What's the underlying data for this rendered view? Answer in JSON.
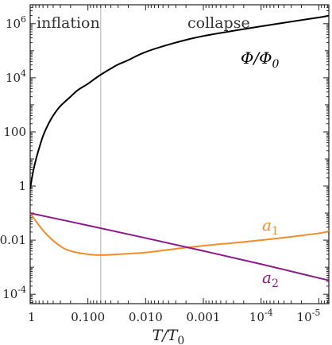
{
  "chart_data": {
    "type": "line",
    "title": "",
    "xlabel": "T/T",
    "xlabel_sub": "0",
    "ylabel": "",
    "x_scale": "log",
    "x_reversed": true,
    "y_scale": "log",
    "xlim": [
      1,
      6.7e-06
    ],
    "ylim": [
      4.5e-05,
      5000000
    ],
    "x_ticks": [
      {
        "label": "1",
        "value": 1
      },
      {
        "label": "0.100",
        "value": 0.1
      },
      {
        "label": "0.010",
        "value": 0.01
      },
      {
        "label": "0.001",
        "value": 0.001
      },
      {
        "label": "10",
        "sup": "-4",
        "value": 0.0001
      },
      {
        "label": "10",
        "sup": "-5",
        "value": 1e-05
      }
    ],
    "y_ticks": [
      {
        "label": "10",
        "sup": "-4",
        "value": 0.0001
      },
      {
        "label": "0.01",
        "value": 0.01
      },
      {
        "label": "1",
        "value": 1
      },
      {
        "label": "100",
        "value": 100
      },
      {
        "label": "10",
        "sup": "4",
        "value": 10000
      },
      {
        "label": "10",
        "sup": "6",
        "value": 1000000
      }
    ],
    "grid": false,
    "divider": {
      "x": 0.06
    },
    "regions": [
      {
        "label": "inflation"
      },
      {
        "label": "collapse"
      }
    ],
    "series": [
      {
        "name": "Φ/Φ",
        "name_sub": "0",
        "color": "#000000",
        "x": [
          1,
          0.9,
          0.8,
          0.7,
          0.6,
          0.5,
          0.4,
          0.3,
          0.2,
          0.15,
          0.1,
          0.08,
          0.06,
          0.04,
          0.03,
          0.02,
          0.01,
          0.003,
          0.001,
          0.0001,
          1e-05,
          6.7e-06
        ],
        "values": [
          0.8,
          3,
          9,
          25,
          70,
          170,
          400,
          900,
          2000,
          3500,
          6000,
          8500,
          13000,
          22000,
          31000,
          45000,
          90000,
          200000,
          350000,
          800000,
          1700000,
          2000000
        ]
      },
      {
        "name": "a",
        "name_sub": "1",
        "color": "#f28c28",
        "x": [
          1,
          0.7,
          0.5,
          0.3,
          0.2,
          0.1,
          0.06,
          0.03,
          0.01,
          0.003,
          0.001,
          0.0001,
          1e-05,
          6.7e-06
        ],
        "values": [
          0.1,
          0.035,
          0.015,
          0.006,
          0.004,
          0.003,
          0.0028,
          0.003,
          0.0035,
          0.0048,
          0.0062,
          0.01,
          0.018,
          0.022
        ]
      },
      {
        "name": "a",
        "name_sub": "2",
        "color": "#8b1a8b",
        "x": [
          1,
          0.1,
          0.01,
          0.001,
          0.0001,
          1e-05,
          6.7e-06
        ],
        "values": [
          0.1,
          0.035,
          0.012,
          0.004,
          0.0013,
          0.0004,
          0.00033
        ]
      }
    ]
  }
}
